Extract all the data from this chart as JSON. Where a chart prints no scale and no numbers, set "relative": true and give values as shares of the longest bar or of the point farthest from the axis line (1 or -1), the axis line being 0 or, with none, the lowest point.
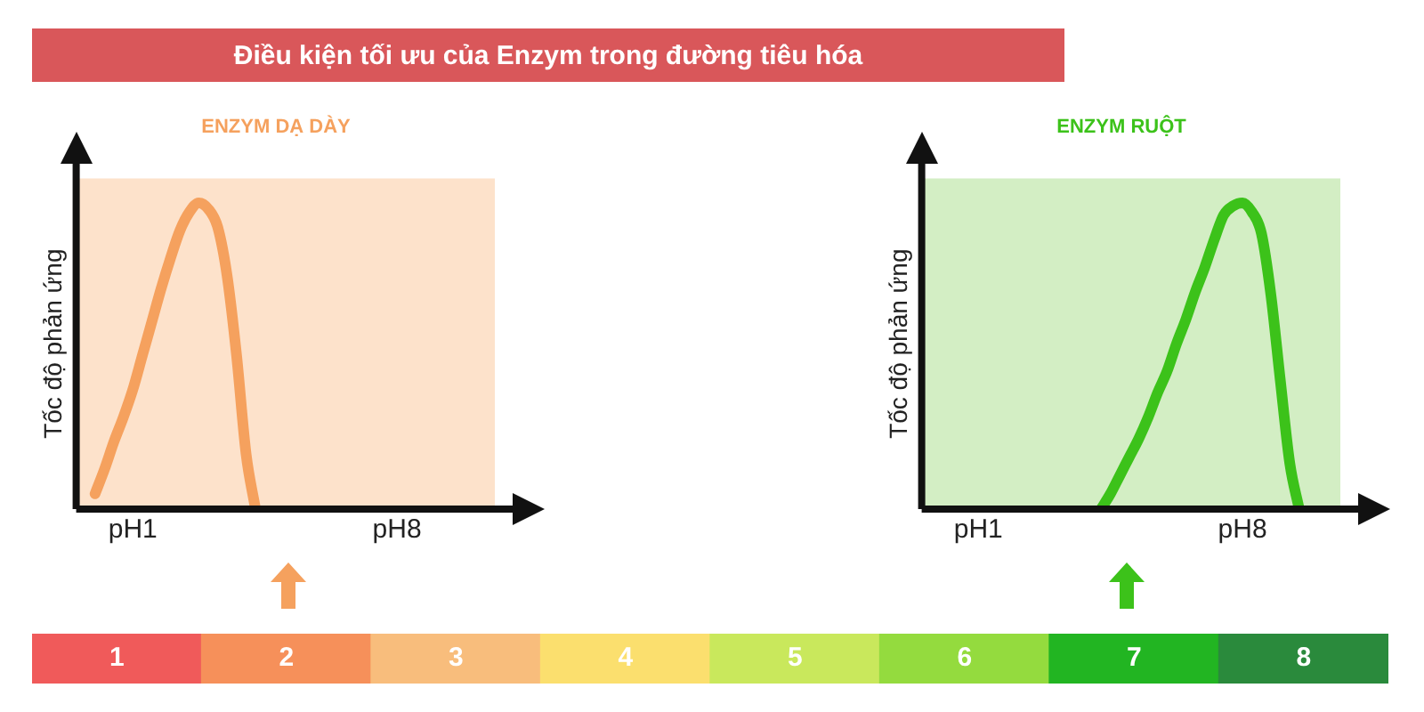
{
  "chart_data": [
    {
      "type": "other",
      "title": "Điều kiện tối ưu của Enzym trong đường tiêu hóa"
    },
    {
      "type": "line",
      "title": "ENZYM DẠ DÀY",
      "ylabel": "Tốc độ phản ứng",
      "relative": true,
      "marker": "none",
      "tick_labels": "x",
      "categories": [
        null,
        null,
        null,
        null,
        null,
        null,
        "pH1",
        null,
        null,
        null,
        null,
        null,
        null,
        null,
        null,
        null,
        null,
        null,
        null,
        null,
        null,
        null,
        null,
        null,
        null,
        null,
        null,
        null,
        null,
        null,
        null,
        null,
        null,
        null,
        "pH8",
        null,
        null,
        null,
        null,
        null,
        null,
        null,
        null,
        null,
        null,
        null,
        null,
        null
      ],
      "series": [
        {
          "color": "#f5a15e",
          "values": [
            null,
            null,
            0.05,
            0.13,
            0.22,
            0.3,
            0.39,
            0.5,
            0.61,
            0.72,
            0.82,
            0.91,
            0.97,
            1,
            0.98,
            0.92,
            0.76,
            0.5,
            0.18,
            0,
            null,
            null,
            null,
            null,
            null,
            null,
            null,
            null,
            null,
            null,
            null,
            null,
            null,
            null,
            null,
            null,
            null,
            null,
            null,
            null,
            null,
            null,
            null,
            null,
            null,
            null,
            null,
            null
          ]
        }
      ]
    },
    {
      "type": "line",
      "title": "ENZYM RUỘT",
      "ylabel": "Tốc độ phản ứng",
      "relative": true,
      "marker": "none",
      "tick_labels": "x",
      "categories": [
        null,
        null,
        null,
        null,
        null,
        null,
        "pH1",
        null,
        null,
        null,
        null,
        null,
        null,
        null,
        null,
        null,
        null,
        null,
        null,
        null,
        null,
        null,
        null,
        null,
        null,
        null,
        null,
        null,
        null,
        null,
        null,
        null,
        null,
        null,
        "pH8",
        null,
        null,
        null,
        null,
        null,
        null,
        null,
        null,
        null,
        null,
        null,
        null,
        null
      ],
      "series": [
        {
          "color": "#3cc21a",
          "values": [
            null,
            null,
            null,
            null,
            null,
            null,
            null,
            null,
            null,
            null,
            null,
            null,
            null,
            null,
            null,
            null,
            null,
            null,
            null,
            0,
            0.05,
            0.11,
            0.17,
            0.23,
            0.3,
            0.38,
            0.45,
            0.54,
            0.62,
            0.71,
            0.79,
            0.88,
            0.96,
            0.99,
            1,
            0.97,
            0.9,
            0.7,
            0.42,
            0.15,
            0,
            null,
            null,
            null,
            null,
            null,
            null,
            null
          ]
        }
      ]
    },
    {
      "type": "bar",
      "relative": true,
      "categories": [
        "1",
        "2",
        "3",
        "4",
        "5",
        "6",
        "7",
        "8"
      ],
      "values": [
        1,
        1,
        1,
        1,
        1,
        1,
        1,
        1
      ],
      "colors": [
        "#f05a5a",
        "#f6905a",
        "#f8bd7c",
        "#fbdf6e",
        "#c9e85c",
        "#94db3e",
        "#22b522",
        "#2a8a3c"
      ]
    }
  ]
}
